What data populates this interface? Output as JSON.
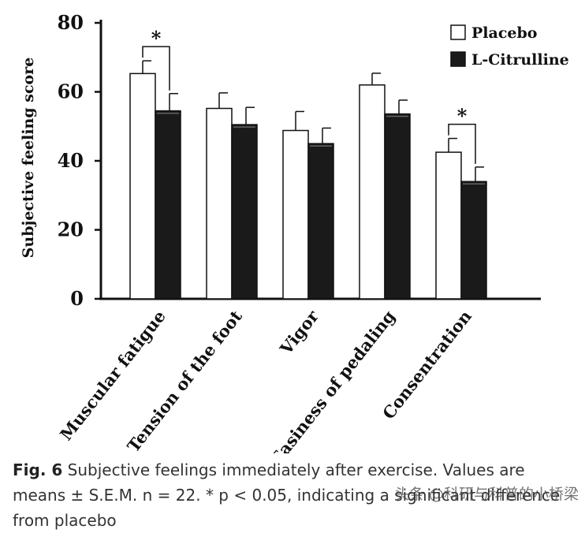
{
  "chart_data": {
    "type": "bar",
    "ylabel": "Subjective feeling score",
    "ylim": [
      0,
      80
    ],
    "yticks": [
      0,
      20,
      40,
      60,
      80
    ],
    "categories": [
      "Muscular fatigue",
      "Tension of the foot",
      "Vigor",
      "Easiness of pedaling",
      "Consentration"
    ],
    "series": [
      {
        "name": "Placebo",
        "values": [
          65.3,
          55.2,
          48.8,
          62.0,
          42.5
        ],
        "errors": [
          3.7,
          4.5,
          5.5,
          3.4,
          4.0
        ],
        "color": "#ffffff"
      },
      {
        "name": "L-Citrulline",
        "values": [
          54.5,
          50.5,
          45.0,
          53.6,
          34.0
        ],
        "errors": [
          5.0,
          5.0,
          4.5,
          4.0,
          4.2
        ],
        "color": "#1a1a1a"
      }
    ],
    "significance": [
      {
        "category_index": 0,
        "label": "*"
      },
      {
        "category_index": 4,
        "label": "*"
      }
    ],
    "legend_position": "top-right"
  },
  "caption": {
    "label": "Fig. 6",
    "text": "Subjective feelings immediately after exercise. Values are means ± S.E.M. n = 22. * p < 0.05, indicating a significant difference from placebo"
  },
  "watermark": "头条 @科研与科普的小桥梁"
}
